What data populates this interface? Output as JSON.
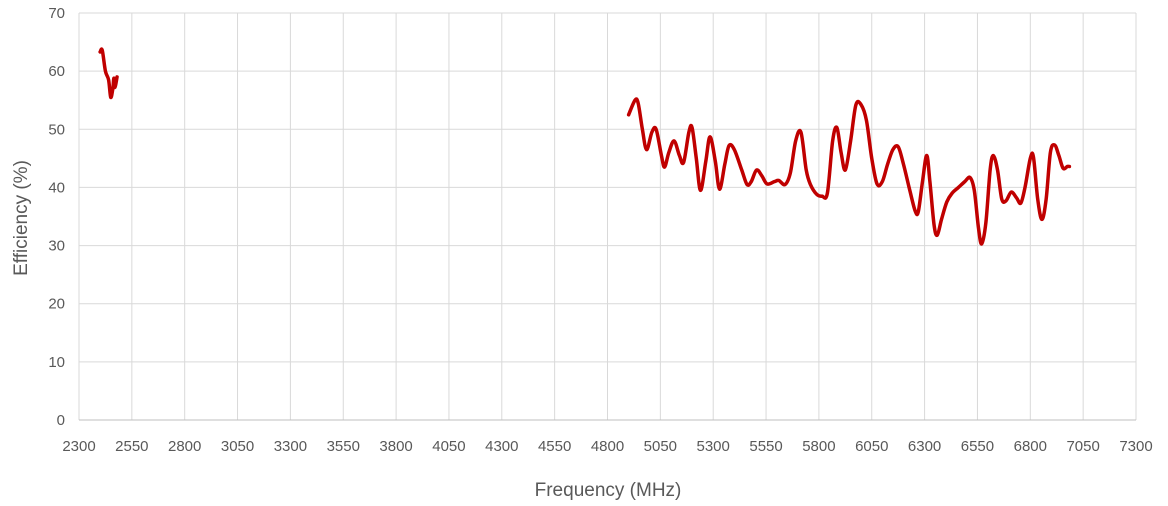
{
  "chart_data": {
    "type": "line",
    "xlabel": "Frequency (MHz)",
    "ylabel": "Efficiency (%)",
    "xlim": [
      2300,
      7300
    ],
    "ylim": [
      0,
      70
    ],
    "x_ticks": [
      2300,
      2550,
      2800,
      3050,
      3300,
      3550,
      3800,
      4050,
      4300,
      4550,
      4800,
      5050,
      5300,
      5550,
      5800,
      6050,
      6300,
      6550,
      6800,
      7050,
      7300
    ],
    "y_ticks": [
      0,
      10,
      20,
      30,
      40,
      50,
      60,
      70
    ],
    "grid": true,
    "line_color": "#c00000",
    "series": [
      {
        "segments": [
          [
            [
              2400,
              63.3
            ],
            [
              2410,
              63.6
            ],
            [
              2425,
              60
            ],
            [
              2440,
              58.5
            ],
            [
              2450,
              55.5
            ],
            [
              2460,
              57
            ],
            [
              2465,
              58.8
            ],
            [
              2470,
              57.2
            ],
            [
              2480,
              59
            ]
          ],
          [
            [
              4900,
              52.5
            ],
            [
              4930,
              55
            ],
            [
              4945,
              54.5
            ],
            [
              4965,
              50
            ],
            [
              4985,
              46.5
            ],
            [
              5010,
              49.5
            ],
            [
              5030,
              50
            ],
            [
              5055,
              45.5
            ],
            [
              5070,
              43.5
            ],
            [
              5090,
              46
            ],
            [
              5115,
              48
            ],
            [
              5140,
              45.5
            ],
            [
              5160,
              44.3
            ],
            [
              5185,
              49.5
            ],
            [
              5200,
              50.3
            ],
            [
              5220,
              45
            ],
            [
              5240,
              39.5
            ],
            [
              5265,
              44.5
            ],
            [
              5285,
              48.7
            ],
            [
              5310,
              44.5
            ],
            [
              5330,
              39.7
            ],
            [
              5355,
              44
            ],
            [
              5375,
              47.2
            ],
            [
              5400,
              46.5
            ],
            [
              5435,
              43
            ],
            [
              5460,
              40.5
            ],
            [
              5480,
              41
            ],
            [
              5505,
              43
            ],
            [
              5530,
              42
            ],
            [
              5555,
              40.6
            ],
            [
              5590,
              41
            ],
            [
              5610,
              41.2
            ],
            [
              5640,
              40.5
            ],
            [
              5665,
              42.5
            ],
            [
              5690,
              48
            ],
            [
              5715,
              49.5
            ],
            [
              5740,
              43
            ],
            [
              5760,
              40.5
            ],
            [
              5790,
              38.8
            ],
            [
              5815,
              38.5
            ],
            [
              5840,
              39
            ],
            [
              5865,
              48
            ],
            [
              5885,
              50.3
            ],
            [
              5905,
              46
            ],
            [
              5925,
              43
            ],
            [
              5950,
              48
            ],
            [
              5975,
              54.2
            ],
            [
              6000,
              54.2
            ],
            [
              6025,
              51.5
            ],
            [
              6050,
              45
            ],
            [
              6075,
              40.6
            ],
            [
              6100,
              41
            ],
            [
              6125,
              44
            ],
            [
              6150,
              46.5
            ],
            [
              6175,
              47
            ],
            [
              6200,
              44
            ],
            [
              6230,
              39.5
            ],
            [
              6255,
              36
            ],
            [
              6270,
              35.8
            ],
            [
              6290,
              41
            ],
            [
              6310,
              45.5
            ],
            [
              6325,
              41
            ],
            [
              6345,
              33.5
            ],
            [
              6360,
              31.8
            ],
            [
              6380,
              34.5
            ],
            [
              6405,
              37.5
            ],
            [
              6430,
              39
            ],
            [
              6460,
              40
            ],
            [
              6490,
              41
            ],
            [
              6515,
              41.7
            ],
            [
              6535,
              39.5
            ],
            [
              6555,
              33
            ],
            [
              6570,
              30.3
            ],
            [
              6590,
              34
            ],
            [
              6610,
              43
            ],
            [
              6625,
              45.5
            ],
            [
              6645,
              43
            ],
            [
              6665,
              38
            ],
            [
              6685,
              37.7
            ],
            [
              6710,
              39.2
            ],
            [
              6735,
              38.2
            ],
            [
              6755,
              37.3
            ],
            [
              6775,
              40
            ],
            [
              6800,
              45
            ],
            [
              6815,
              45.2
            ],
            [
              6835,
              38
            ],
            [
              6855,
              34.5
            ],
            [
              6875,
              38
            ],
            [
              6895,
              46
            ],
            [
              6915,
              47.3
            ],
            [
              6935,
              45.5
            ],
            [
              6955,
              43.3
            ],
            [
              6975,
              43.6
            ],
            [
              6985,
              43.6
            ]
          ]
        ]
      }
    ]
  }
}
